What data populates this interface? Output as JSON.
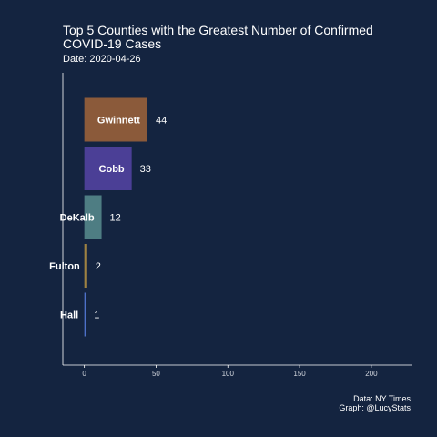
{
  "chart_data": {
    "type": "bar",
    "orientation": "horizontal",
    "title": "Top 5 Counties with the Greatest Number of Confirmed COVID-19 Cases",
    "subtitle": "Date: 2020-04-26",
    "categories": [
      "Gwinnett",
      "Cobb",
      "DeKalb",
      "Fulton",
      "Hall"
    ],
    "values": [
      44,
      33,
      12,
      2,
      1
    ],
    "bar_colors": [
      "#8b5a3a",
      "#4b3f96",
      "#4e7d83",
      "#9d8142",
      "#4d70c8"
    ],
    "xlim": [
      -15,
      228
    ],
    "x_ticks": [
      0,
      50,
      100,
      150,
      200
    ],
    "xlabel": "",
    "ylabel": "",
    "grid": false,
    "legend": "none",
    "caption": [
      "Data: NY Times",
      "Graph: @LucyStats"
    ]
  },
  "colors": {
    "background": "#142440",
    "axis": "#ffffff",
    "text": "#ffffff"
  }
}
